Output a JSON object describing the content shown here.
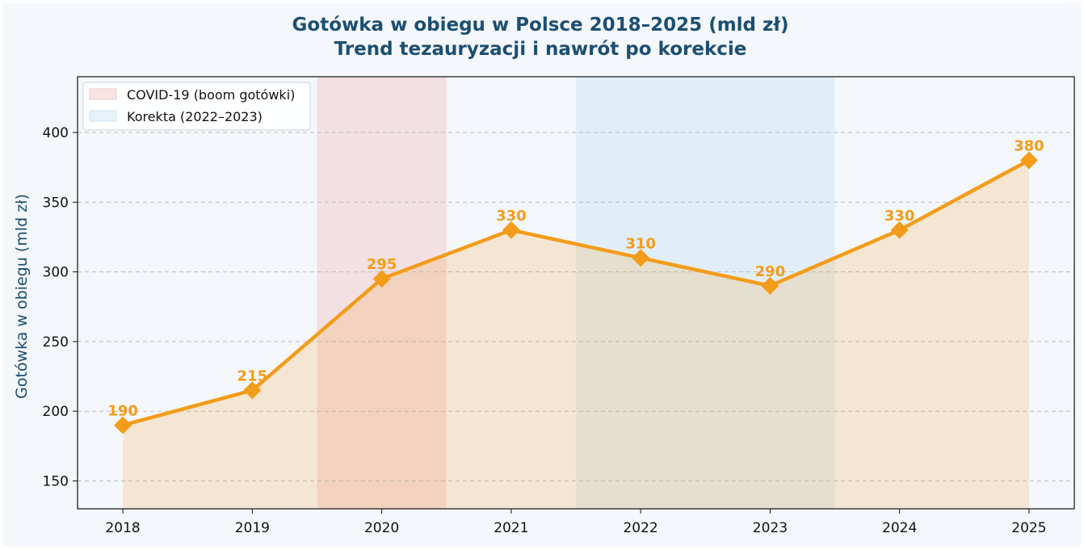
{
  "chart_data": {
    "type": "area",
    "title": "Gotówka w obiegu w Polsce 2018–2025 (mld zł)",
    "subtitle": "Trend tezauryzacji i nawrót po korekcie",
    "xlabel": "",
    "ylabel": "Gotówka w obiegu (mld zł)",
    "categories": [
      "2018",
      "2019",
      "2020",
      "2021",
      "2022",
      "2023",
      "2024",
      "2025"
    ],
    "series": [
      {
        "values": [
          190,
          215,
          295,
          330,
          310,
          290,
          330,
          380
        ],
        "color": "#f39c1a",
        "marker": "diamond"
      }
    ],
    "yticks": [
      "150",
      "200",
      "250",
      "300",
      "350",
      "400"
    ],
    "ylim": [
      130,
      440
    ],
    "xlim": [
      -0.35,
      7.35
    ],
    "grid": "y-dashed",
    "shaded_regions": [
      {
        "label": "COVID-19 (boom gotówki)",
        "from": 1.5,
        "to": 2.5,
        "color": "#f2c9cc"
      },
      {
        "label": "Korekta (2022–2023)",
        "from": 3.5,
        "to": 5.5,
        "color": "#cfe5f3"
      }
    ],
    "legend_position": "top-left"
  }
}
